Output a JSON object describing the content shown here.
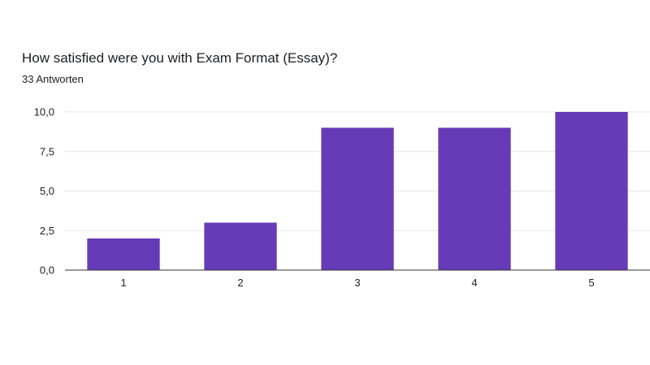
{
  "header": {
    "title": "How satisfied were you with Exam Format (Essay)?",
    "subtitle": "33 Antworten"
  },
  "chart_data": {
    "type": "bar",
    "title": "How satisfied were you with Exam Format (Essay)?",
    "subtitle": "33 Antworten",
    "categories": [
      "1",
      "2",
      "3",
      "4",
      "5"
    ],
    "values": [
      2,
      3,
      9,
      9,
      10
    ],
    "ylim": [
      0,
      10
    ],
    "yticks": [
      0,
      2.5,
      5,
      7.5,
      10
    ],
    "ytick_labels": [
      "0,0",
      "2,5",
      "5,0",
      "7,5",
      "10,0"
    ],
    "xlabel": "",
    "ylabel": "",
    "grid": true,
    "legend": "none",
    "bar_color": "#673ab7",
    "grid_color": "#e6e6e6",
    "axis_color": "#333333"
  }
}
